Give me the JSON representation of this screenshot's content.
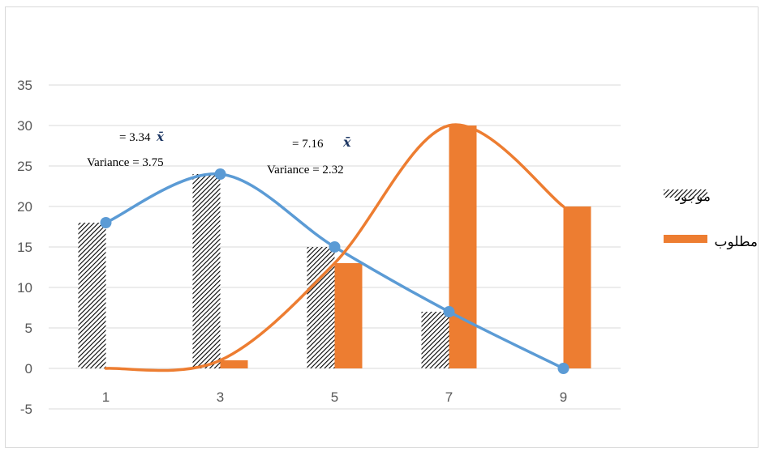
{
  "chart_data": {
    "type": "bar",
    "categories": [
      "1",
      "3",
      "5",
      "7",
      "9"
    ],
    "series": [
      {
        "name": "موجود",
        "values": [
          18,
          24,
          15,
          7,
          0
        ],
        "color": "#000000",
        "pattern": "hatch"
      },
      {
        "name": "مطلوب",
        "values": [
          0,
          1,
          13,
          30,
          20
        ],
        "color": "#ed7d31",
        "pattern": "solid"
      }
    ],
    "curves": [
      {
        "series": "موجود",
        "color": "#5b9bd5",
        "markers": true,
        "x": [
          1,
          3,
          5,
          7,
          9
        ],
        "y": [
          18,
          24,
          15,
          7,
          0
        ]
      },
      {
        "series": "مطلوب",
        "color": "#ed7d31",
        "markers": false,
        "x": [
          1,
          3,
          5,
          7,
          9
        ],
        "y": [
          0,
          1,
          13,
          30,
          20
        ]
      }
    ],
    "ylim": [
      -5,
      35
    ],
    "yticks": [
      -5,
      0,
      5,
      10,
      15,
      20,
      25,
      30,
      35
    ],
    "grid": true,
    "legend": "right",
    "annotations": [
      {
        "mean": "= 3.34",
        "variance": "Variance =  3.75"
      },
      {
        "mean": "= 7.16",
        "variance": "Variance =  2.32"
      }
    ]
  }
}
